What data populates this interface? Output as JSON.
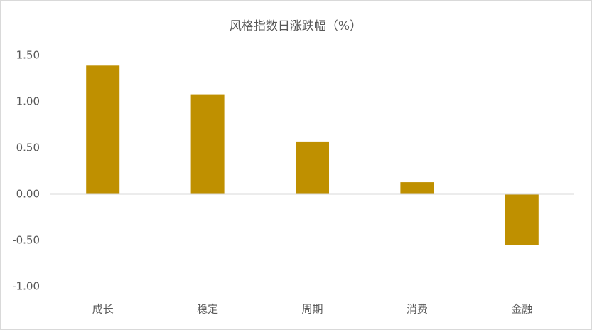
{
  "chart_data": {
    "type": "bar",
    "title": "风格指数日涨跌幅（%）",
    "categories": [
      "成长",
      "稳定",
      "周期",
      "消费",
      "金融"
    ],
    "values": [
      1.39,
      1.08,
      0.57,
      0.13,
      -0.55
    ],
    "color": "#bf9000",
    "ylim": [
      -1,
      1.5
    ],
    "yticks": [
      {
        "value": -1,
        "label": "-1.00"
      },
      {
        "value": -0.5,
        "label": "-0.50"
      },
      {
        "value": 0,
        "label": "0.00"
      },
      {
        "value": 0.5,
        "label": "0.50"
      },
      {
        "value": 1,
        "label": "1.00"
      },
      {
        "value": 1.5,
        "label": "1.50"
      }
    ],
    "grid": false
  }
}
